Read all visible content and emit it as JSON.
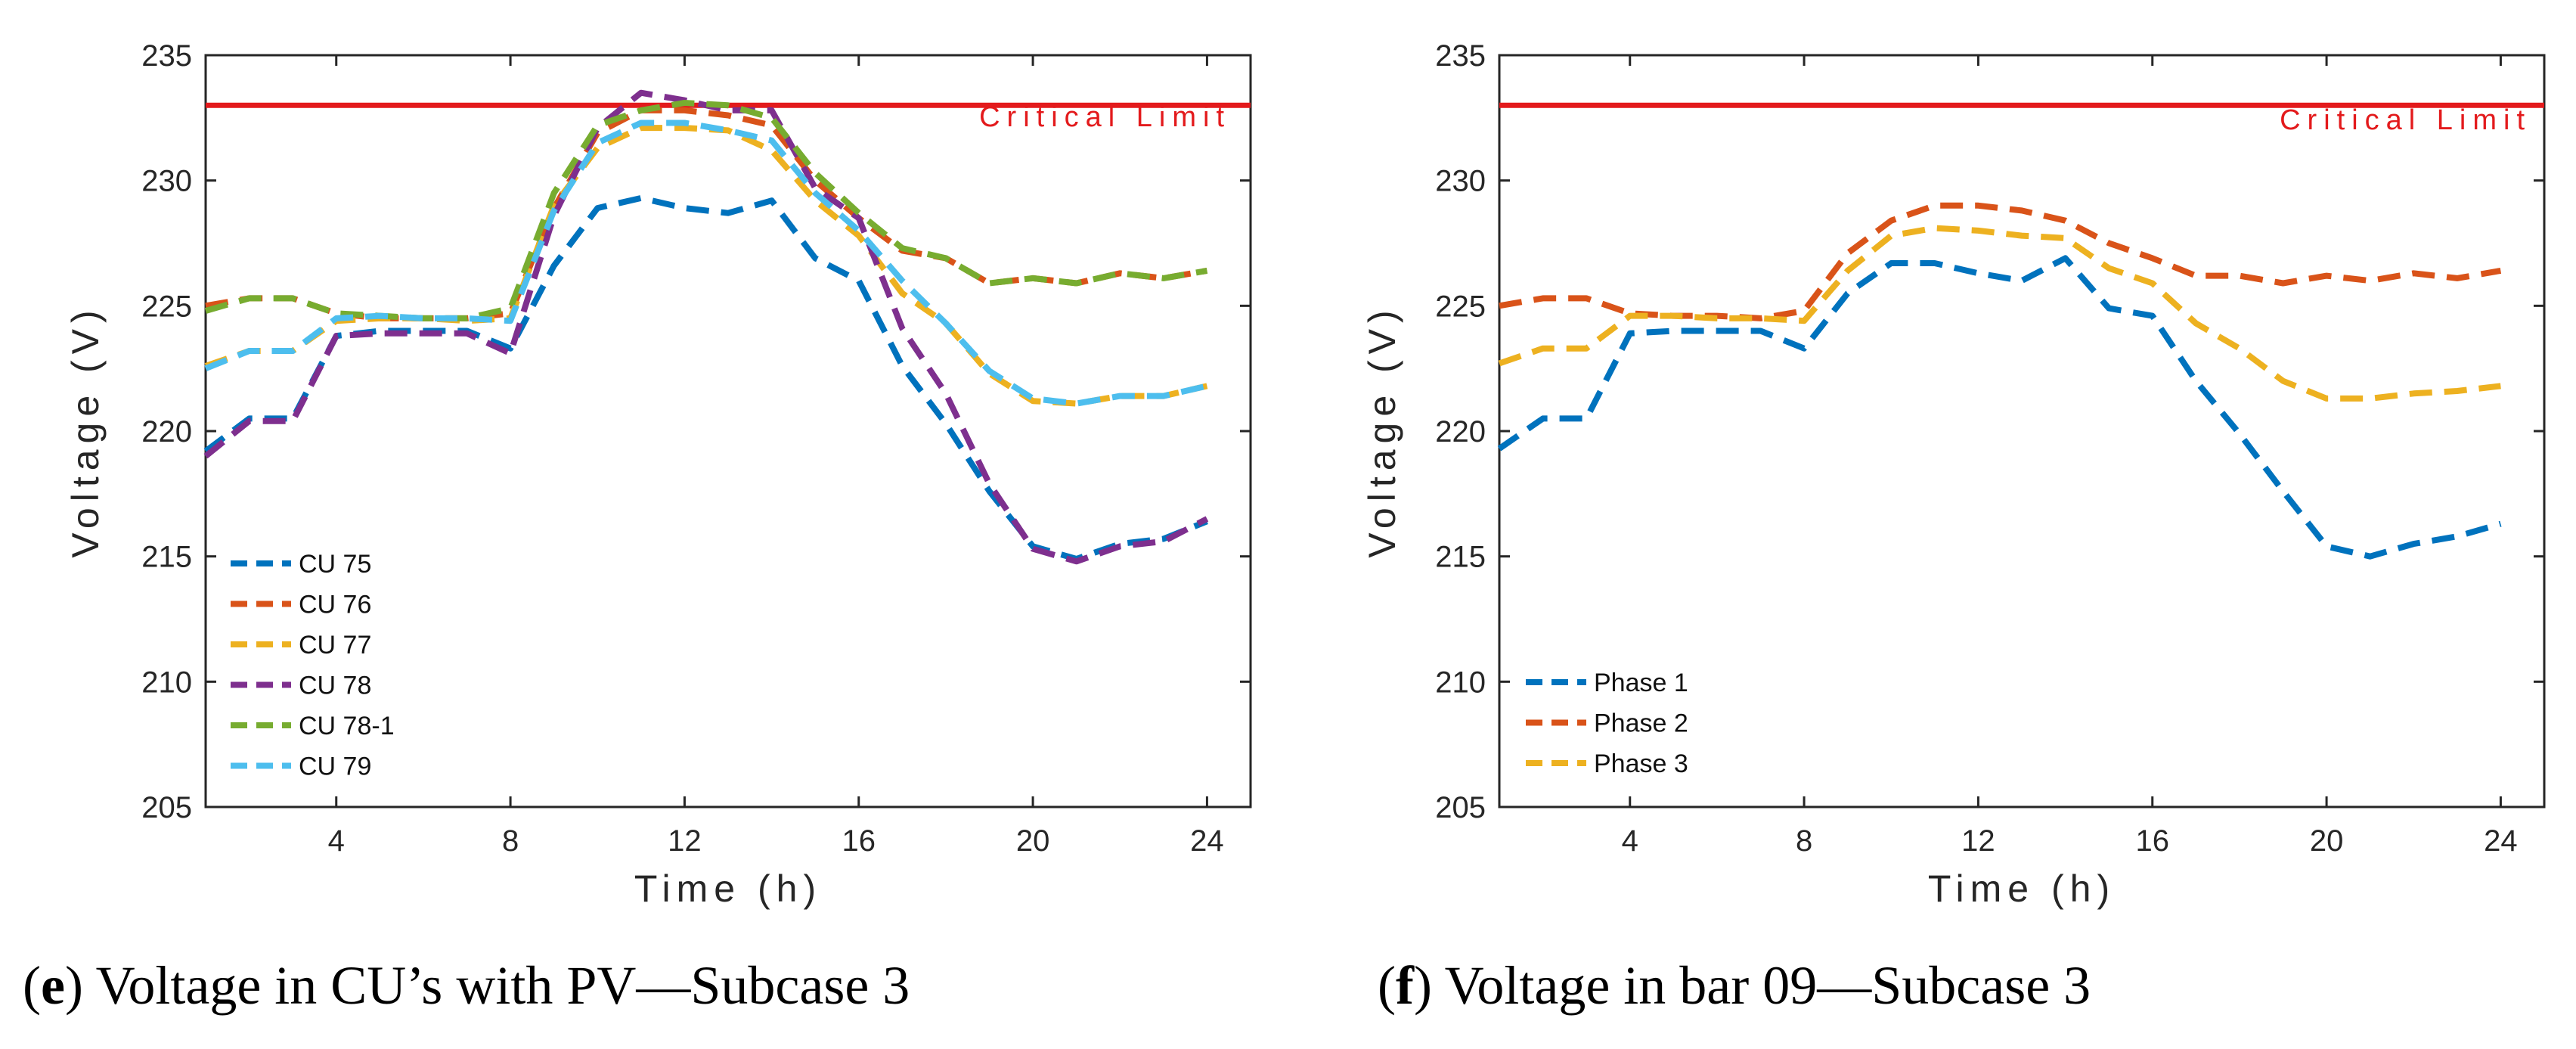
{
  "colors": {
    "critical": "#e31a1c",
    "axis": "#262626",
    "blue": "#0072bd",
    "orange": "#d95319",
    "yellow": "#edb120",
    "purple": "#7e2f8e",
    "green": "#77ac30",
    "cyan": "#4dbeee"
  },
  "captions": {
    "e_letter": "e",
    "e_text": "Voltage in CU’s with PV—Subcase 3",
    "f_letter": "f",
    "f_text": "Voltage in bar 09—Subcase 3"
  },
  "chart_data": [
    {
      "type": "line",
      "xlabel": "Time (h)",
      "ylabel": "Voltage (V)",
      "xlim": [
        1,
        25
      ],
      "ylim": [
        205,
        235
      ],
      "xticks": [
        4,
        8,
        12,
        16,
        20,
        24
      ],
      "yticks": [
        205,
        210,
        215,
        220,
        225,
        230,
        235
      ],
      "grid": false,
      "legend": "bottom-left",
      "reference_line": {
        "label": "Critical Limit",
        "value": 233
      },
      "x": [
        1,
        2,
        3,
        4,
        5,
        6,
        7,
        8,
        9,
        10,
        11,
        12,
        13,
        14,
        15,
        16,
        17,
        18,
        19,
        20,
        21,
        22,
        23,
        24
      ],
      "series": [
        {
          "name": "CU 75",
          "color": "#0072bd",
          "values": [
            219.2,
            220.5,
            220.5,
            223.8,
            224.0,
            224.0,
            224.0,
            223.3,
            226.6,
            228.9,
            229.3,
            228.9,
            228.7,
            229.2,
            226.9,
            226.0,
            222.6,
            220.3,
            217.6,
            215.4,
            214.9,
            215.5,
            215.7,
            216.4
          ]
        },
        {
          "name": "CU 76",
          "color": "#d95319",
          "values": [
            225.0,
            225.3,
            225.3,
            224.7,
            224.5,
            224.5,
            224.5,
            224.7,
            228.9,
            231.9,
            232.8,
            232.8,
            232.6,
            232.2,
            230.0,
            228.5,
            227.2,
            226.9,
            225.9,
            226.1,
            225.9,
            226.3,
            226.1,
            226.4
          ]
        },
        {
          "name": "CU 77",
          "color": "#edb120",
          "values": [
            222.6,
            223.2,
            223.2,
            224.4,
            224.5,
            224.5,
            224.4,
            224.5,
            229.0,
            231.3,
            232.1,
            232.1,
            232.0,
            231.2,
            229.2,
            227.8,
            225.5,
            224.3,
            222.3,
            221.2,
            221.1,
            221.4,
            221.4,
            221.8
          ]
        },
        {
          "name": "CU 78",
          "color": "#7e2f8e",
          "values": [
            219.0,
            220.4,
            220.4,
            223.8,
            223.9,
            223.9,
            223.9,
            223.1,
            228.6,
            232.1,
            233.5,
            233.2,
            232.8,
            232.8,
            229.7,
            228.5,
            224.1,
            221.5,
            217.9,
            215.3,
            214.8,
            215.4,
            215.6,
            216.5
          ]
        },
        {
          "name": "CU 78-1",
          "color": "#77ac30",
          "values": [
            224.8,
            225.3,
            225.3,
            224.7,
            224.6,
            224.5,
            224.5,
            224.9,
            229.5,
            232.2,
            232.8,
            233.1,
            233.0,
            232.5,
            230.3,
            228.7,
            227.3,
            226.9,
            225.9,
            226.1,
            225.9,
            226.3,
            226.1,
            226.4
          ]
        },
        {
          "name": "CU 79",
          "color": "#4dbeee",
          "values": [
            222.5,
            223.2,
            223.2,
            224.5,
            224.6,
            224.5,
            224.5,
            224.4,
            228.8,
            231.5,
            232.3,
            232.3,
            232.0,
            231.6,
            229.5,
            228.0,
            226.0,
            224.3,
            222.4,
            221.3,
            221.1,
            221.4,
            221.4,
            221.8
          ]
        }
      ]
    },
    {
      "type": "line",
      "xlabel": "Time (h)",
      "ylabel": "Voltage (V)",
      "xlim": [
        1,
        25
      ],
      "ylim": [
        205,
        235
      ],
      "xticks": [
        4,
        8,
        12,
        16,
        20,
        24
      ],
      "yticks": [
        205,
        210,
        215,
        220,
        225,
        230,
        235
      ],
      "grid": false,
      "legend": "bottom-left",
      "reference_line": {
        "label": "Critical Limit",
        "value": 233
      },
      "x": [
        1,
        2,
        3,
        4,
        5,
        6,
        7,
        8,
        9,
        10,
        11,
        12,
        13,
        14,
        15,
        16,
        17,
        18,
        19,
        20,
        21,
        22,
        23,
        24
      ],
      "series": [
        {
          "name": "Phase 1",
          "color": "#0072bd",
          "values": [
            219.3,
            220.5,
            220.5,
            223.9,
            224.0,
            224.0,
            224.0,
            223.3,
            225.5,
            226.7,
            226.7,
            226.3,
            226.0,
            226.9,
            224.9,
            224.6,
            222.0,
            219.9,
            217.6,
            215.4,
            215.0,
            215.5,
            215.8,
            216.3
          ]
        },
        {
          "name": "Phase 2",
          "color": "#d95319",
          "values": [
            225.0,
            225.3,
            225.3,
            224.7,
            224.6,
            224.6,
            224.5,
            224.8,
            227.1,
            228.4,
            229.0,
            229.0,
            228.8,
            228.4,
            227.5,
            226.9,
            226.2,
            226.2,
            225.9,
            226.2,
            226.0,
            226.3,
            226.1,
            226.4
          ]
        },
        {
          "name": "Phase 3",
          "color": "#edb120",
          "values": [
            222.7,
            223.3,
            223.3,
            224.6,
            224.6,
            224.5,
            224.5,
            224.4,
            226.4,
            227.8,
            228.1,
            228.0,
            227.8,
            227.7,
            226.5,
            225.9,
            224.3,
            223.3,
            222.0,
            221.3,
            221.3,
            221.5,
            221.6,
            221.8
          ]
        }
      ]
    }
  ]
}
